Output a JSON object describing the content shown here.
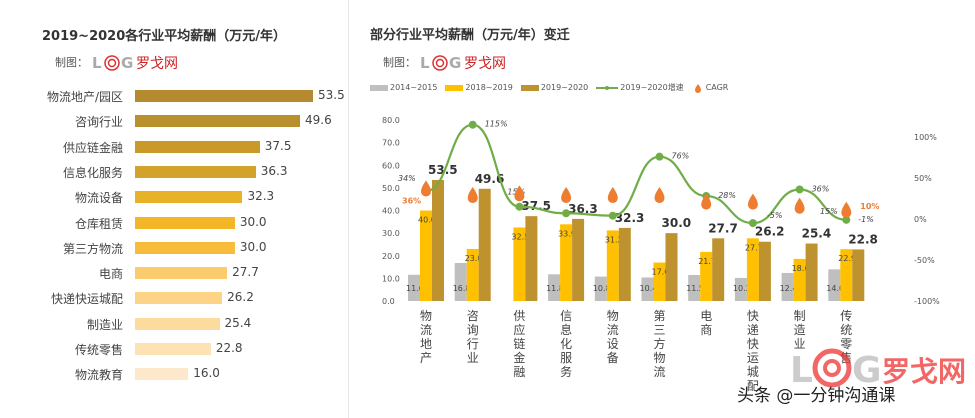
{
  "left": {
    "title": "2019~2020各行业平均薪酬（万元/年）",
    "credit_label": "制图：",
    "logo_text": "LOG罗戈网",
    "chart_data": {
      "type": "bar",
      "orientation": "horizontal",
      "categories": [
        "物流地产/园区",
        "咨询行业",
        "供应链金融",
        "信息化服务",
        "物流设备",
        "仓库租赁",
        "第三方物流",
        "电商",
        "快递快运城配",
        "制造业",
        "传统零售",
        "物流教育"
      ],
      "values": [
        53.5,
        49.6,
        37.5,
        36.3,
        32.3,
        30.0,
        30.0,
        27.7,
        26.2,
        25.4,
        22.8,
        16.0
      ],
      "labels": [
        "53.5",
        "49.6",
        "37.5",
        "36.3",
        "32.3",
        "30.0",
        "30.0",
        "27.7",
        "26.2",
        "25.4",
        "22.8",
        "16.0"
      ],
      "colors": [
        "#b5892e",
        "#b8902e",
        "#c99a2a",
        "#d2a22a",
        "#e7b128",
        "#f2b626",
        "#f7bd3a",
        "#fbcc6e",
        "#fcd387",
        "#fddb9d",
        "#fde2b4",
        "#fde8cc"
      ]
    }
  },
  "right": {
    "title": "部分行业平均薪酬（万元/年）变迁",
    "credit_label": "制图：",
    "logo_text": "LOG罗戈网",
    "chart_data": {
      "type": "bar+line",
      "categories": [
        "物流地产",
        "咨询行业",
        "供应链金融",
        "信息化服务",
        "物流设备",
        "第三方物流",
        "电商",
        "快递快运城配",
        "制造业",
        "传统零售"
      ],
      "series": [
        {
          "name": "2014~2015",
          "type": "bar",
          "color": "#bfbfbf",
          "values": [
            11.6,
            16.8,
            null,
            11.8,
            10.8,
            10.4,
            11.5,
            10.2,
            12.4,
            14.0
          ]
        },
        {
          "name": "2018~2019",
          "type": "bar",
          "color": "#ffc000",
          "values": [
            40.0,
            23.0,
            32.5,
            33.9,
            31.2,
            17.0,
            21.7,
            27.7,
            18.6,
            22.9
          ]
        },
        {
          "name": "2019~2020",
          "type": "bar",
          "color": "#bf9230",
          "values": [
            53.5,
            49.6,
            37.5,
            36.3,
            32.3,
            30.0,
            27.7,
            26.2,
            25.4,
            22.8
          ]
        },
        {
          "name": "2019~2020增速",
          "type": "line",
          "axis": "right",
          "color": "#70ad47",
          "values": [
            34,
            115,
            15,
            7,
            4,
            76,
            28,
            -5,
            36,
            -1
          ],
          "labels": [
            "34%",
            "115%",
            "15%",
            "",
            "",
            "76%",
            "28%",
            "-5%",
            "36%",
            "-1%"
          ]
        },
        {
          "name": "CAGR",
          "type": "marker",
          "axis": "right",
          "color": "#ed7d31",
          "values": [
            36,
            28,
            30,
            28,
            28,
            28,
            20,
            20,
            15,
            10
          ],
          "labels": [
            "36%",
            "",
            "",
            "",
            "",
            "",
            "",
            "",
            "",
            "10%"
          ]
        }
      ],
      "annotation": "15%",
      "ylim": [
        0,
        80
      ],
      "yticks": [
        "0.0",
        "10.0",
        "20.0",
        "30.0",
        "40.0",
        "50.0",
        "60.0",
        "70.0",
        "80.0"
      ],
      "y2lim": [
        -100,
        100
      ],
      "y2ticks": [
        "-100%",
        "-50%",
        "0%",
        "50%",
        "100%"
      ]
    }
  },
  "watermark": {
    "logo_text": "LOG罗戈网",
    "text": "头条 @一分钟沟通课"
  }
}
